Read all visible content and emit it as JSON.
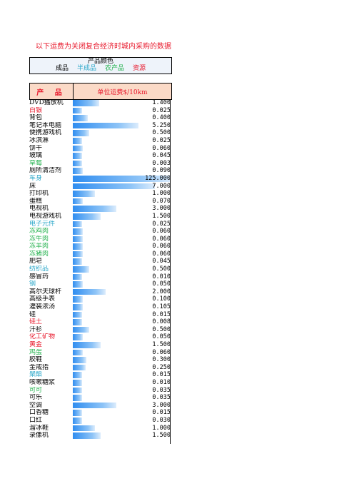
{
  "title": "以下运费为关闭复合经济时城内采购的数据",
  "legend": {
    "header": "产品颜色",
    "items": [
      {
        "label": "成品",
        "color": "#000000"
      },
      {
        "label": "半成品",
        "color": "#2aa7c9"
      },
      {
        "label": "农产品",
        "color": "#22b14c"
      },
      {
        "label": "资源",
        "color": "#e8192c"
      }
    ]
  },
  "table_header": {
    "product": "产 品",
    "unit_cost": "单位运费$/10km"
  },
  "bar_max": 125,
  "rows": [
    {
      "name": "DVD播放机",
      "value": "1.400",
      "v": 1.4,
      "color": "#000000"
    },
    {
      "name": "白银",
      "value": "0.025",
      "v": 0.025,
      "color": "#e8192c"
    },
    {
      "name": "背包",
      "value": "0.400",
      "v": 0.4,
      "color": "#000000"
    },
    {
      "name": "笔记本电脑",
      "value": "5.250",
      "v": 5.25,
      "color": "#000000"
    },
    {
      "name": "便携游戏机",
      "value": "0.500",
      "v": 0.5,
      "color": "#000000"
    },
    {
      "name": "冰淇淋",
      "value": "0.025",
      "v": 0.025,
      "color": "#000000"
    },
    {
      "name": "饼干",
      "value": "0.060",
      "v": 0.06,
      "color": "#000000"
    },
    {
      "name": "玻璃",
      "value": "0.045",
      "v": 0.045,
      "color": "#000000"
    },
    {
      "name": "草莓",
      "value": "0.003",
      "v": 0.003,
      "color": "#22b14c"
    },
    {
      "name": "厕所清洁剂",
      "value": "0.090",
      "v": 0.09,
      "color": "#000000"
    },
    {
      "name": "车身",
      "value": "125.000",
      "v": 125,
      "color": "#2aa7c9"
    },
    {
      "name": "床",
      "value": "7.000",
      "v": 7,
      "color": "#000000"
    },
    {
      "name": "打印机",
      "value": "1.000",
      "v": 1,
      "color": "#000000"
    },
    {
      "name": "蛋糕",
      "value": "0.070",
      "v": 0.07,
      "color": "#000000"
    },
    {
      "name": "电视机",
      "value": "3.000",
      "v": 3,
      "color": "#000000"
    },
    {
      "name": "电视游戏机",
      "value": "1.500",
      "v": 1.5,
      "color": "#000000"
    },
    {
      "name": "电子元件",
      "value": "0.025",
      "v": 0.025,
      "color": "#2aa7c9"
    },
    {
      "name": "冻鸡肉",
      "value": "0.060",
      "v": 0.06,
      "color": "#22b14c"
    },
    {
      "name": "冻牛肉",
      "value": "0.060",
      "v": 0.06,
      "color": "#22b14c"
    },
    {
      "name": "冻羊肉",
      "value": "0.060",
      "v": 0.06,
      "color": "#22b14c"
    },
    {
      "name": "冻猪肉",
      "value": "0.060",
      "v": 0.06,
      "color": "#22b14c"
    },
    {
      "name": "肥皂",
      "value": "0.045",
      "v": 0.045,
      "color": "#000000"
    },
    {
      "name": "纺织品",
      "value": "0.500",
      "v": 0.5,
      "color": "#2aa7c9"
    },
    {
      "name": "感冒药",
      "value": "0.010",
      "v": 0.01,
      "color": "#000000"
    },
    {
      "name": "钢",
      "value": "0.050",
      "v": 0.05,
      "color": "#2aa7c9"
    },
    {
      "name": "高尔夫球杆",
      "value": "2.000",
      "v": 2,
      "color": "#000000"
    },
    {
      "name": "高级手表",
      "value": "0.100",
      "v": 0.1,
      "color": "#000000"
    },
    {
      "name": "灌装浓汤",
      "value": "0.105",
      "v": 0.105,
      "color": "#000000"
    },
    {
      "name": "硅",
      "value": "0.015",
      "v": 0.015,
      "color": "#000000"
    },
    {
      "name": "硅土",
      "value": "0.008",
      "v": 0.008,
      "color": "#e8192c"
    },
    {
      "name": "汗衫",
      "value": "0.500",
      "v": 0.5,
      "color": "#000000"
    },
    {
      "name": "化工矿物",
      "value": "0.050",
      "v": 0.05,
      "color": "#e8192c"
    },
    {
      "name": "黄金",
      "value": "1.500",
      "v": 1.5,
      "color": "#e8192c"
    },
    {
      "name": "鸡蛋",
      "value": "0.060",
      "v": 0.06,
      "color": "#22b14c"
    },
    {
      "name": "胶鞋",
      "value": "0.300",
      "v": 0.3,
      "color": "#000000"
    },
    {
      "name": "金戒指",
      "value": "0.250",
      "v": 0.25,
      "color": "#000000"
    },
    {
      "name": "聚酯",
      "value": "0.015",
      "v": 0.015,
      "color": "#2aa7c9"
    },
    {
      "name": "咳嗽糖浆",
      "value": "0.010",
      "v": 0.01,
      "color": "#000000"
    },
    {
      "name": "可可",
      "value": "0.035",
      "v": 0.035,
      "color": "#22b14c"
    },
    {
      "name": "可乐",
      "value": "0.035",
      "v": 0.035,
      "color": "#000000"
    },
    {
      "name": "空调",
      "value": "3.000",
      "v": 3,
      "color": "#000000"
    },
    {
      "name": "口香糖",
      "value": "0.015",
      "v": 0.015,
      "color": "#000000"
    },
    {
      "name": "口红",
      "value": "0.030",
      "v": 0.03,
      "color": "#000000"
    },
    {
      "name": "溜冰鞋",
      "value": "1.000",
      "v": 1,
      "color": "#000000"
    },
    {
      "name": "录像机",
      "value": "1.500",
      "v": 1.5,
      "color": "#000000"
    }
  ]
}
